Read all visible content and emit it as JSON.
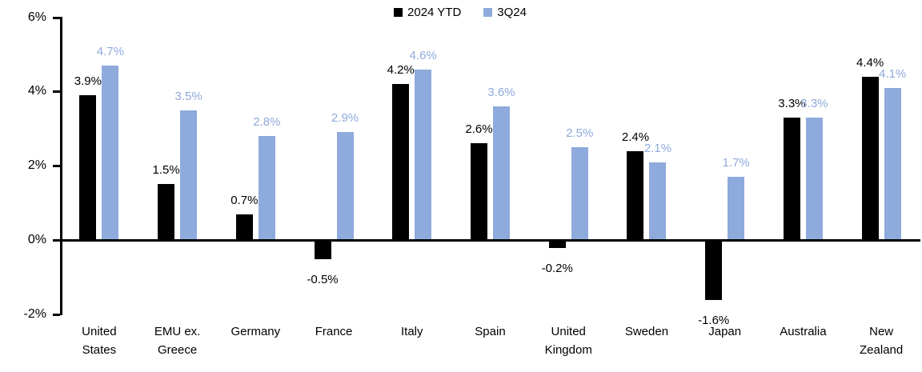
{
  "chart_data": {
    "type": "bar",
    "title": "",
    "xlabel": "",
    "ylabel": "",
    "categories": [
      "United States",
      "EMU ex. Greece",
      "Germany",
      "France",
      "Italy",
      "Spain",
      "United Kingdom",
      "Sweden",
      "Japan",
      "Australia",
      "New Zealand"
    ],
    "category_labels_wrapped": [
      "United\nStates",
      "EMU ex.\nGreece",
      "Germany",
      "France",
      "Italy",
      "Spain",
      "United\nKingdom",
      "Sweden",
      "Japan",
      "Australia",
      "New\nZealand"
    ],
    "series": [
      {
        "name": "2024 YTD",
        "color": "#000000",
        "values": [
          3.9,
          1.5,
          0.7,
          -0.5,
          4.2,
          2.6,
          -0.2,
          2.4,
          -1.6,
          3.3,
          4.4
        ],
        "labels": [
          "3.9%",
          "1.5%",
          "0.7%",
          "-0.5%",
          "4.2%",
          "2.6%",
          "-0.2%",
          "2.4%",
          "-1.6%",
          "3.3%",
          "4.4%"
        ]
      },
      {
        "name": "3Q24",
        "color": "#8FAADC",
        "values": [
          4.7,
          3.5,
          2.8,
          2.9,
          4.6,
          3.6,
          2.5,
          2.1,
          1.7,
          3.3,
          4.1
        ],
        "labels": [
          "4.7%",
          "3.5%",
          "2.8%",
          "2.9%",
          "4.6%",
          "3.6%",
          "2.5%",
          "2.1%",
          "1.7%",
          "3.3%",
          "4.1%"
        ]
      }
    ],
    "y_axis": {
      "min": -2,
      "max": 6,
      "ticks": [
        {
          "label": "6%",
          "value": 6
        },
        {
          "label": "4%",
          "value": 4
        },
        {
          "label": "2%",
          "value": 2
        },
        {
          "label": "0%",
          "value": 0
        },
        {
          "label": "-2%",
          "value": -2
        }
      ]
    },
    "legend_position": "top",
    "grid": false,
    "axis_color": "#000000"
  }
}
